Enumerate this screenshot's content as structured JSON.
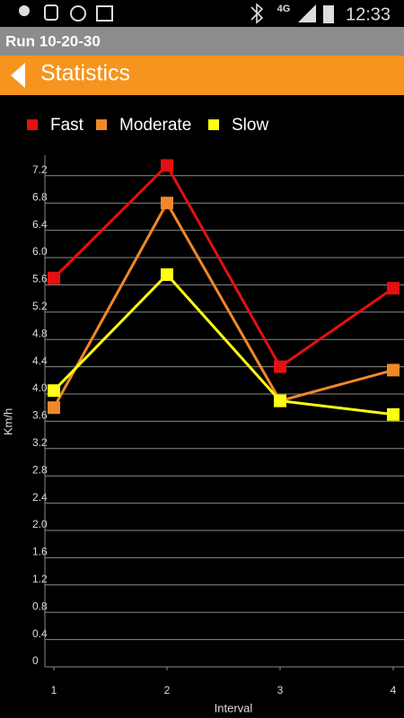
{
  "status_bar": {
    "network": "4G",
    "time": "12:33"
  },
  "app_title": "Run 10-20-30",
  "header": {
    "title": "Statistics"
  },
  "chart_data": {
    "type": "line",
    "x_label": "Interval",
    "y_label": "Km/h",
    "x": [
      1,
      2,
      3,
      4
    ],
    "xlim": [
      1,
      4
    ],
    "xticks": [
      1,
      2,
      3,
      4
    ],
    "ylim": [
      0,
      7.5
    ],
    "yticks": [
      0,
      0.4,
      0.8,
      1.2,
      1.6,
      {
        "value": 2,
        "label": "2.0"
      },
      2.4,
      2.8,
      3.2,
      3.6,
      {
        "value": 4,
        "label": "4.0"
      },
      4.4,
      4.8,
      5.2,
      5.6,
      {
        "value": 6,
        "label": "6.0"
      },
      6.4,
      6.8,
      7.2
    ],
    "grid": true,
    "series": [
      {
        "name": "Fast",
        "color": "#e41010",
        "values": [
          5.7,
          7.35,
          4.4,
          5.55
        ]
      },
      {
        "name": "Moderate",
        "color": "#f08828",
        "values": [
          3.8,
          6.8,
          3.9,
          4.35
        ]
      },
      {
        "name": "Slow",
        "color": "#ffff10",
        "values": [
          4.05,
          5.75,
          3.9,
          3.7
        ]
      }
    ]
  }
}
